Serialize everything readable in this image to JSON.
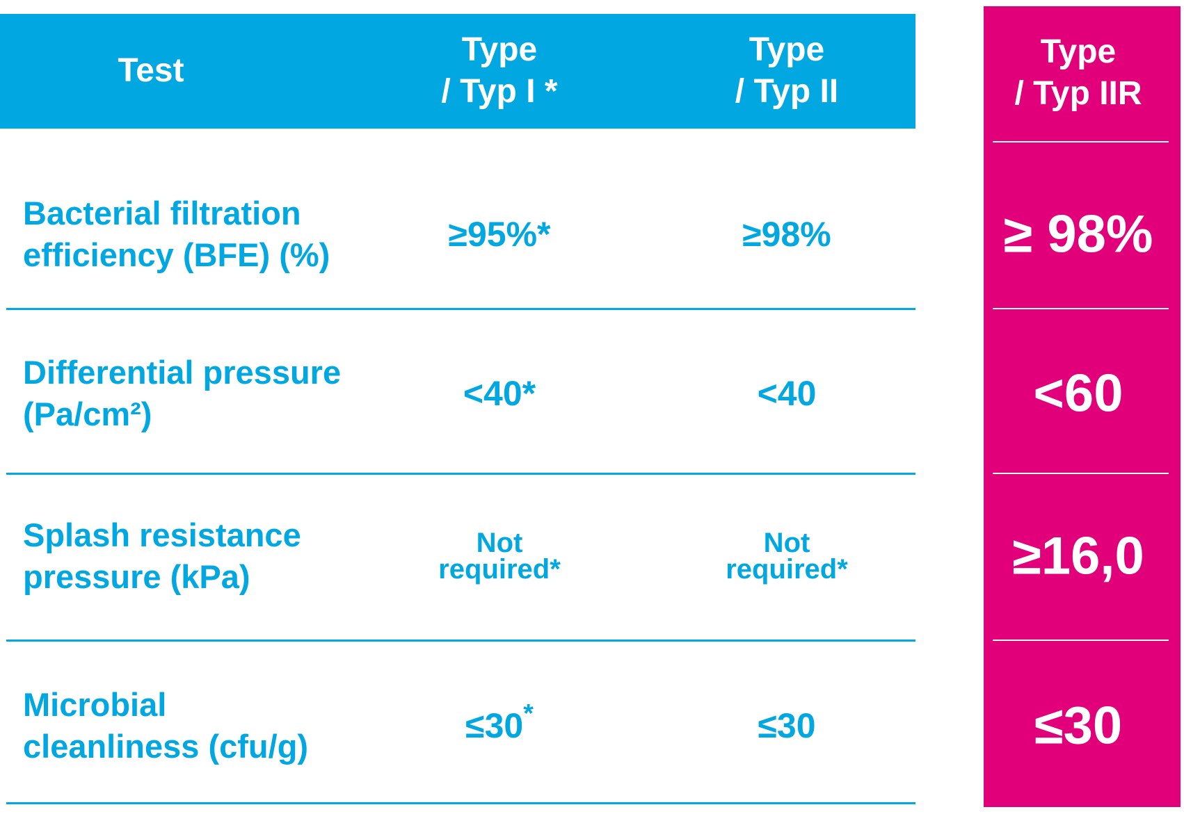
{
  "table": {
    "header": [
      {
        "lines": [
          "Test"
        ]
      },
      {
        "lines": [
          "Type",
          "/ Typ I *"
        ]
      },
      {
        "lines": [
          "Type",
          "/ Typ II"
        ]
      },
      {
        "lines": [
          "Type",
          "/ Typ IIR"
        ]
      }
    ],
    "rows": [
      {
        "label": [
          "Bacterial filtration",
          "efficiency (BFE) (%)"
        ],
        "cells": [
          {
            "lines": [
              "≥95%*"
            ]
          },
          {
            "lines": [
              "≥98%"
            ]
          },
          {
            "lines": [
              "≥ 98%"
            ]
          }
        ]
      },
      {
        "label": [
          "Differential pressure",
          "(Pa/cm²)"
        ],
        "cells": [
          {
            "lines": [
              "<40*"
            ]
          },
          {
            "lines": [
              "<40"
            ]
          },
          {
            "lines": [
              "<60"
            ]
          }
        ]
      },
      {
        "label": [
          "Splash resistance",
          "pressure (kPa)"
        ],
        "cells": [
          {
            "lines": [
              "Not",
              "required*"
            ]
          },
          {
            "lines": [
              "Not",
              "required*"
            ]
          },
          {
            "lines": [
              "≥16,0"
            ]
          }
        ]
      },
      {
        "label": [
          "Microbial",
          "cleanliness (cfu/g)"
        ],
        "cells": [
          {
            "lines": [
              "≤30"
            ],
            "sup": "*"
          },
          {
            "lines": [
              "≤30"
            ]
          },
          {
            "lines": [
              "≤30"
            ]
          }
        ]
      }
    ]
  }
}
